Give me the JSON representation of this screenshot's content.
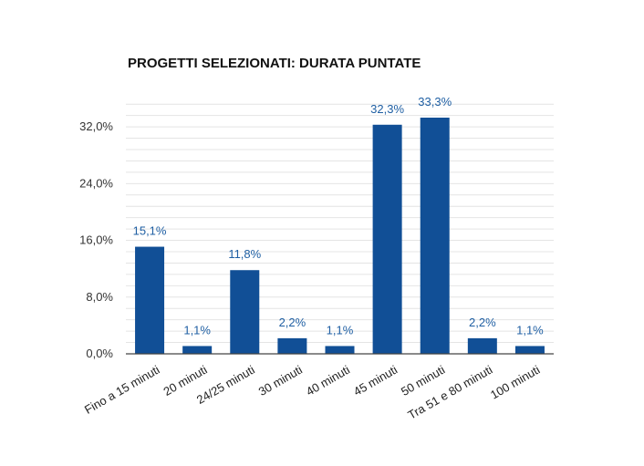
{
  "chart_data": {
    "type": "bar",
    "title": "PROGETTI SELEZIONATI: DURATA PUNTATE",
    "xlabel": "",
    "ylabel": "",
    "categories": [
      "Fino a 15 minuti",
      "20 minuti",
      "24/25 minuti",
      "30 minuti",
      "40 minuti",
      "45 minuti",
      "50 minuti",
      "Tra 51 e 80 minuti",
      "100 minuti"
    ],
    "values": [
      15.1,
      1.1,
      11.8,
      2.2,
      1.1,
      32.3,
      33.3,
      2.2,
      1.1
    ],
    "value_labels": [
      "15,1%",
      "1,1%",
      "11,8%",
      "2,2%",
      "1,1%",
      "32,3%",
      "33,3%",
      "2,2%",
      "1,1%"
    ],
    "yticks": [
      0,
      8,
      16,
      24,
      32
    ],
    "ytick_labels": [
      "0,0%",
      "8,0%",
      "16,0%",
      "24,0%",
      "32,0%"
    ],
    "ylim": [
      0,
      36
    ],
    "minor_grid_step": 1.6,
    "grid": true,
    "legend": "none",
    "bar_color": "#114f96",
    "label_color": "#1f5fa3"
  }
}
